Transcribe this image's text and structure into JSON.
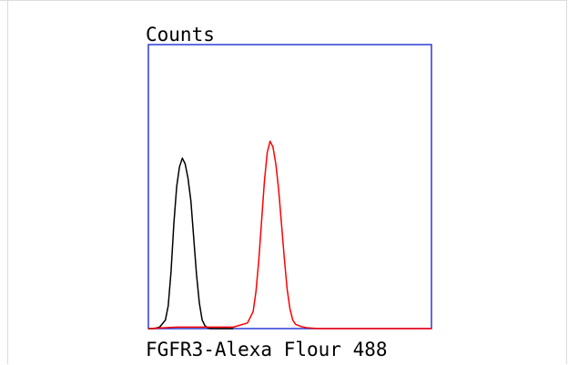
{
  "chart_data": {
    "type": "line",
    "title": "",
    "ylabel": "Counts",
    "xlabel": "FGFR3-Alexa Flour 488",
    "xlim": [
      0,
      100
    ],
    "ylim": [
      0,
      100
    ],
    "grid": false,
    "series": [
      {
        "color": "#000000",
        "x": [
          0,
          2,
          4,
          6,
          7,
          8,
          9,
          10,
          11,
          12,
          13,
          14,
          15,
          16,
          17,
          18,
          19,
          20,
          21,
          22,
          23,
          25,
          30
        ],
        "y": [
          0,
          0,
          0.5,
          3,
          8,
          20,
          37,
          50,
          57,
          60,
          58,
          53,
          45,
          32,
          19,
          9,
          3,
          1,
          0.3,
          0,
          0,
          0,
          0
        ]
      },
      {
        "color": "#ff0000",
        "x": [
          0,
          10,
          20,
          30,
          35,
          37,
          38,
          39,
          40,
          41,
          42,
          43,
          44,
          45,
          46,
          47,
          48,
          49,
          50,
          51,
          52,
          54,
          56,
          60,
          100
        ],
        "y": [
          0,
          0.5,
          0.5,
          0.5,
          2,
          6,
          13,
          24,
          38,
          52,
          62,
          66,
          64,
          58,
          49,
          37,
          25,
          14,
          7,
          3,
          1.5,
          0.7,
          0.3,
          0,
          0
        ]
      }
    ]
  }
}
